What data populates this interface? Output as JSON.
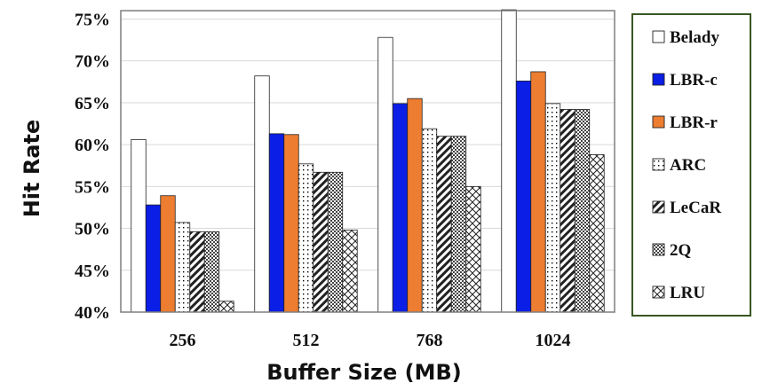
{
  "chart_data": {
    "type": "bar",
    "xlabel": "Buffer Size (MB)",
    "ylabel": "Hit Rate",
    "categories": [
      "256",
      "512",
      "768",
      "1024"
    ],
    "ylim": [
      40,
      76
    ],
    "yticks": [
      40,
      45,
      50,
      55,
      60,
      65,
      70,
      75
    ],
    "ytick_labels": [
      "40%",
      "45%",
      "50%",
      "55%",
      "60%",
      "65%",
      "70%",
      "75%"
    ],
    "grid": true,
    "legend_position": "right",
    "series": [
      {
        "name": "Belady",
        "pattern": "white",
        "values": [
          60.6,
          68.2,
          72.8,
          76.1
        ]
      },
      {
        "name": "LBR-c",
        "pattern": "solid-blue",
        "color": "#0a1ee6",
        "values": [
          52.8,
          61.3,
          64.9,
          67.6
        ]
      },
      {
        "name": "LBR-r",
        "pattern": "solid-orange",
        "color": "#ed7d31",
        "values": [
          53.9,
          61.2,
          65.5,
          68.7
        ]
      },
      {
        "name": "ARC",
        "pattern": "dots",
        "values": [
          50.7,
          57.7,
          61.9,
          64.9
        ]
      },
      {
        "name": "LeCaR",
        "pattern": "diagonal",
        "values": [
          49.6,
          56.7,
          61.0,
          64.2
        ]
      },
      {
        "name": "2Q",
        "pattern": "checker",
        "values": [
          49.6,
          56.7,
          61.0,
          64.2
        ]
      },
      {
        "name": "LRU",
        "pattern": "crosshatch",
        "values": [
          41.3,
          49.8,
          55.0,
          58.8
        ]
      }
    ]
  },
  "colors": {
    "legend_border": "#385723",
    "axis": "#7f7f7f",
    "grid": "#d9d9d9"
  }
}
